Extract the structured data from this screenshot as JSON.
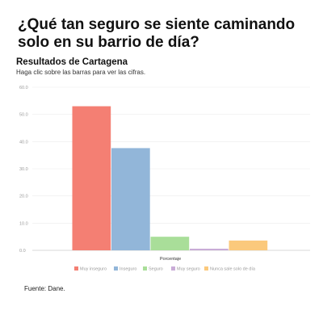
{
  "page": {
    "title": "¿Qué tan seguro se siente caminando solo en su barrio de día?",
    "subtitle": "Resultados de Cartagena",
    "note": "Haga clic sobre las barras para ver las cifras.",
    "source": "Fuente: Dane."
  },
  "chart_data": {
    "type": "bar",
    "xlabel": "Porcentaje",
    "ylabel": "",
    "ylim": [
      0,
      60
    ],
    "yticks": [
      "0.0",
      "10.0",
      "20.0",
      "30.0",
      "40.0",
      "50.0",
      "60.0"
    ],
    "grid": true,
    "legend_position": "bottom",
    "series": [
      {
        "name": "Muy inseguro",
        "value": 53.0,
        "color": "#f47f73"
      },
      {
        "name": "Inseguro",
        "value": 37.6,
        "color": "#92b6d9"
      },
      {
        "name": "Seguro",
        "value": 5.0,
        "color": "#a9de99"
      },
      {
        "name": "Muy seguro",
        "value": 0.6,
        "color": "#c9acd7"
      },
      {
        "name": "Nunca sale solo de día",
        "value": 3.6,
        "color": "#fbc97c"
      }
    ]
  }
}
